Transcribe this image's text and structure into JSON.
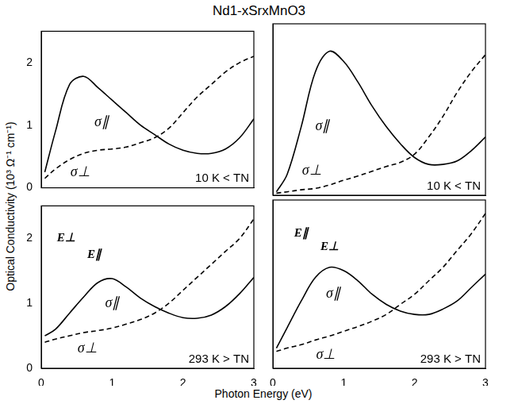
{
  "title": "Nd1-xSrxMnO3",
  "y_label": "Optical Conductivity (10³ Ω⁻¹ cm⁻¹)",
  "x_label": "Photon Energy (eV)",
  "chart_data": [
    {
      "type": "line",
      "title": "10 K < TN",
      "tick_labels": "y",
      "grid": false,
      "xlim": [
        0,
        3
      ],
      "xticks": [
        0,
        1,
        2,
        3
      ],
      "ylim": [
        0,
        2.5
      ],
      "yticks": [
        0,
        1,
        2
      ],
      "x": [
        0.05,
        0.2,
        0.4,
        0.6,
        0.8,
        1.0,
        1.2,
        1.4,
        1.6,
        1.8,
        2.0,
        2.2,
        2.4,
        2.6,
        2.8,
        3.0
      ],
      "series": [
        {
          "name": "σ∥",
          "color": "#000000",
          "line_style": "solid",
          "marker": "none",
          "values": [
            0.25,
            0.9,
            1.65,
            1.78,
            1.6,
            1.4,
            1.2,
            1.0,
            0.85,
            0.7,
            0.6,
            0.55,
            0.55,
            0.62,
            0.8,
            1.1
          ]
        },
        {
          "name": "σ⊥",
          "color": "#000000",
          "line_style": "dashed",
          "marker": "none",
          "values": [
            0.15,
            0.3,
            0.45,
            0.55,
            0.6,
            0.62,
            0.65,
            0.72,
            0.8,
            0.95,
            1.2,
            1.45,
            1.65,
            1.85,
            2.0,
            2.1
          ]
        }
      ],
      "annotations": [
        {
          "text": "σ∥",
          "x": 0.85,
          "y": 1.05
        },
        {
          "text": "σ⊥",
          "x": 0.55,
          "y": 0.25
        }
      ]
    },
    {
      "type": "line",
      "title": "10 K < TN",
      "tick_labels": false,
      "grid": false,
      "xlim": [
        0,
        3
      ],
      "xticks": [
        0,
        1,
        2,
        3
      ],
      "ylim": [
        0,
        2.5
      ],
      "yticks": [
        0,
        1,
        2
      ],
      "x": [
        0.05,
        0.2,
        0.4,
        0.6,
        0.8,
        1.0,
        1.2,
        1.4,
        1.6,
        1.8,
        2.0,
        2.2,
        2.4,
        2.6,
        2.8,
        3.0
      ],
      "series": [
        {
          "name": "σ∥",
          "color": "#000000",
          "line_style": "solid",
          "marker": "none",
          "values": [
            0.05,
            0.3,
            1.0,
            1.8,
            2.1,
            1.95,
            1.65,
            1.3,
            1.0,
            0.75,
            0.55,
            0.45,
            0.45,
            0.5,
            0.65,
            0.85
          ]
        },
        {
          "name": "σ⊥",
          "color": "#000000",
          "line_style": "dashed",
          "marker": "none",
          "values": [
            0.03,
            0.05,
            0.08,
            0.1,
            0.15,
            0.22,
            0.28,
            0.35,
            0.42,
            0.48,
            0.6,
            0.85,
            1.15,
            1.5,
            1.8,
            2.05
          ]
        }
      ],
      "annotations": [
        {
          "text": "σ∥",
          "x": 0.7,
          "y": 1.0
        },
        {
          "text": "σ⊥",
          "x": 0.55,
          "y": 0.35
        }
      ]
    },
    {
      "type": "line",
      "title": "293 K > TN",
      "tick_labels": true,
      "grid": false,
      "xlim": [
        0,
        3
      ],
      "xticks": [
        0,
        1,
        2,
        3
      ],
      "ylim": [
        0,
        2.5
      ],
      "yticks": [
        0,
        1,
        2
      ],
      "x": [
        0.05,
        0.2,
        0.4,
        0.6,
        0.8,
        1.0,
        1.2,
        1.4,
        1.6,
        1.8,
        2.0,
        2.2,
        2.4,
        2.6,
        2.8,
        3.0
      ],
      "series": [
        {
          "name": "σ∥",
          "color": "#000000",
          "line_style": "solid",
          "marker": "none",
          "values": [
            0.5,
            0.6,
            0.85,
            1.1,
            1.32,
            1.38,
            1.25,
            1.08,
            0.95,
            0.85,
            0.78,
            0.77,
            0.82,
            0.95,
            1.15,
            1.4
          ]
        },
        {
          "name": "σ⊥",
          "color": "#000000",
          "line_style": "dashed",
          "marker": "none",
          "values": [
            0.4,
            0.45,
            0.5,
            0.55,
            0.58,
            0.62,
            0.68,
            0.75,
            0.85,
            1.0,
            1.2,
            1.4,
            1.6,
            1.8,
            2.0,
            2.3
          ]
        }
      ],
      "annotations": [
        {
          "text": "σ∥",
          "x": 1.0,
          "y": 1.0
        },
        {
          "text": "σ⊥",
          "x": 0.65,
          "y": 0.3
        },
        {
          "text": "E⊥",
          "x": 0.35,
          "y": 2.0
        },
        {
          "text": "E∥",
          "x": 0.75,
          "y": 1.75
        }
      ]
    },
    {
      "type": "line",
      "title": "293 K > TN",
      "tick_labels": "x",
      "grid": false,
      "xlim": [
        0,
        3
      ],
      "xticks": [
        0,
        1,
        2,
        3
      ],
      "ylim": [
        0,
        2.5
      ],
      "yticks": [
        0,
        1,
        2
      ],
      "x": [
        0.05,
        0.2,
        0.4,
        0.6,
        0.8,
        1.0,
        1.2,
        1.4,
        1.6,
        1.8,
        2.0,
        2.2,
        2.4,
        2.6,
        2.8,
        3.0
      ],
      "series": [
        {
          "name": "σ∥",
          "color": "#000000",
          "line_style": "solid",
          "marker": "none",
          "values": [
            0.3,
            0.6,
            1.0,
            1.35,
            1.5,
            1.45,
            1.3,
            1.1,
            0.95,
            0.85,
            0.8,
            0.8,
            0.88,
            1.0,
            1.2,
            1.4
          ]
        },
        {
          "name": "σ⊥",
          "color": "#000000",
          "line_style": "dashed",
          "marker": "none",
          "values": [
            0.25,
            0.3,
            0.35,
            0.42,
            0.48,
            0.55,
            0.62,
            0.7,
            0.8,
            0.95,
            1.1,
            1.3,
            1.5,
            1.75,
            2.0,
            2.3
          ]
        }
      ],
      "annotations": [
        {
          "text": "σ∥",
          "x": 0.85,
          "y": 1.1
        },
        {
          "text": "σ⊥",
          "x": 0.75,
          "y": 0.2
        },
        {
          "text": "E∥",
          "x": 0.4,
          "y": 2.0
        },
        {
          "text": "E⊥",
          "x": 0.8,
          "y": 1.8
        }
      ]
    }
  ]
}
